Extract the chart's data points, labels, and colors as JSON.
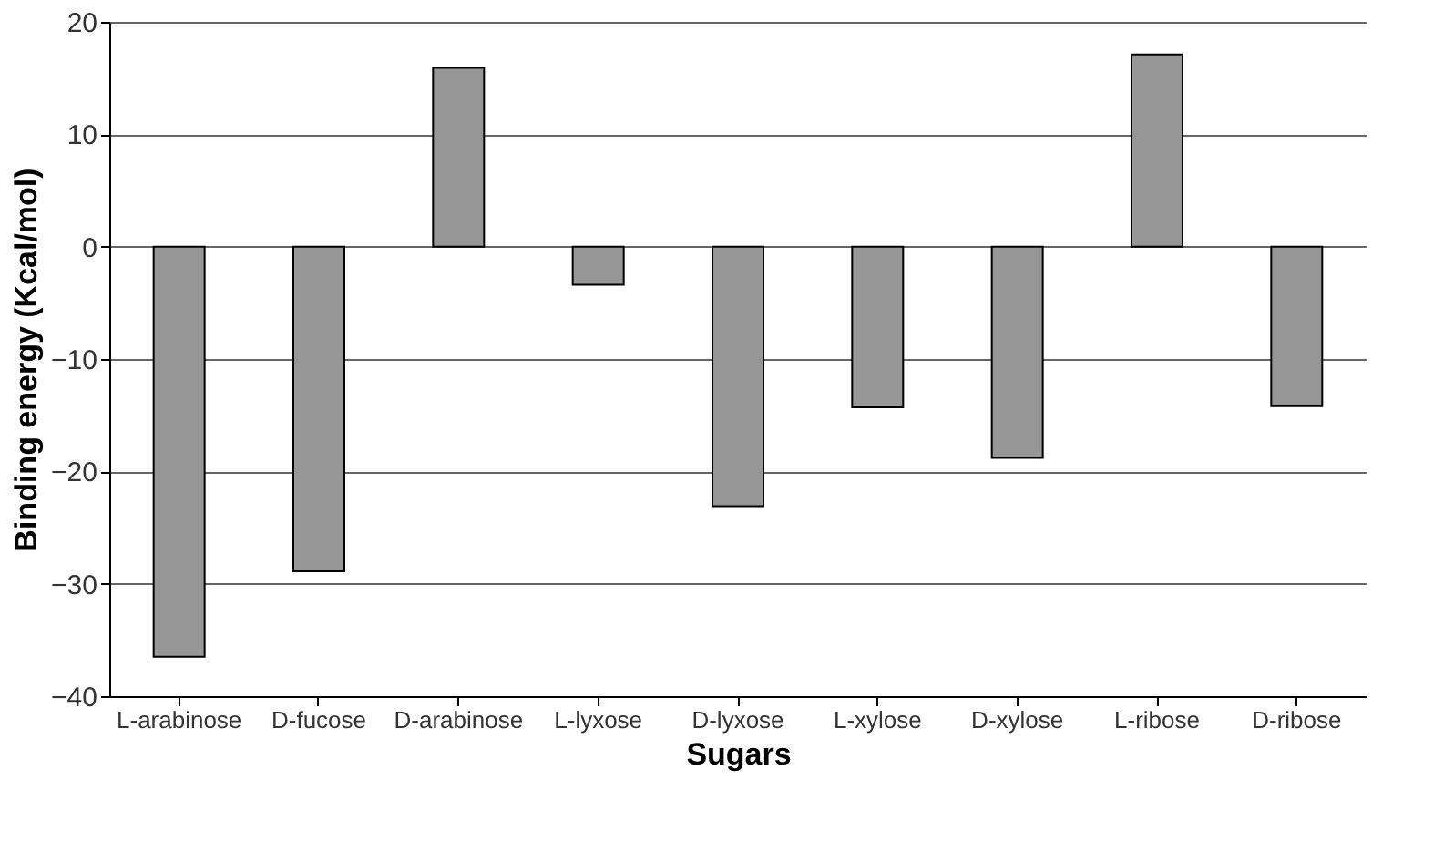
{
  "chart_data": {
    "type": "bar",
    "xlabel": "Sugars",
    "ylabel": "Binding energy (Kcal/mol)",
    "categories": [
      "L-arabinose",
      "D-fucose",
      "D-arabinose",
      "L-lyxose",
      "D-lyxose",
      "L-xylose",
      "D-xylose",
      "L-ribose",
      "D-ribose"
    ],
    "values": [
      -36.5,
      -28.9,
      15.9,
      -3.4,
      -23.1,
      -14.3,
      -18.8,
      17.1,
      -14.2
    ],
    "color": "#969696",
    "ylim": [
      -40,
      20
    ],
    "yticks": [
      -40,
      -30,
      -20,
      -10,
      0,
      10,
      20
    ],
    "grid": "y"
  }
}
